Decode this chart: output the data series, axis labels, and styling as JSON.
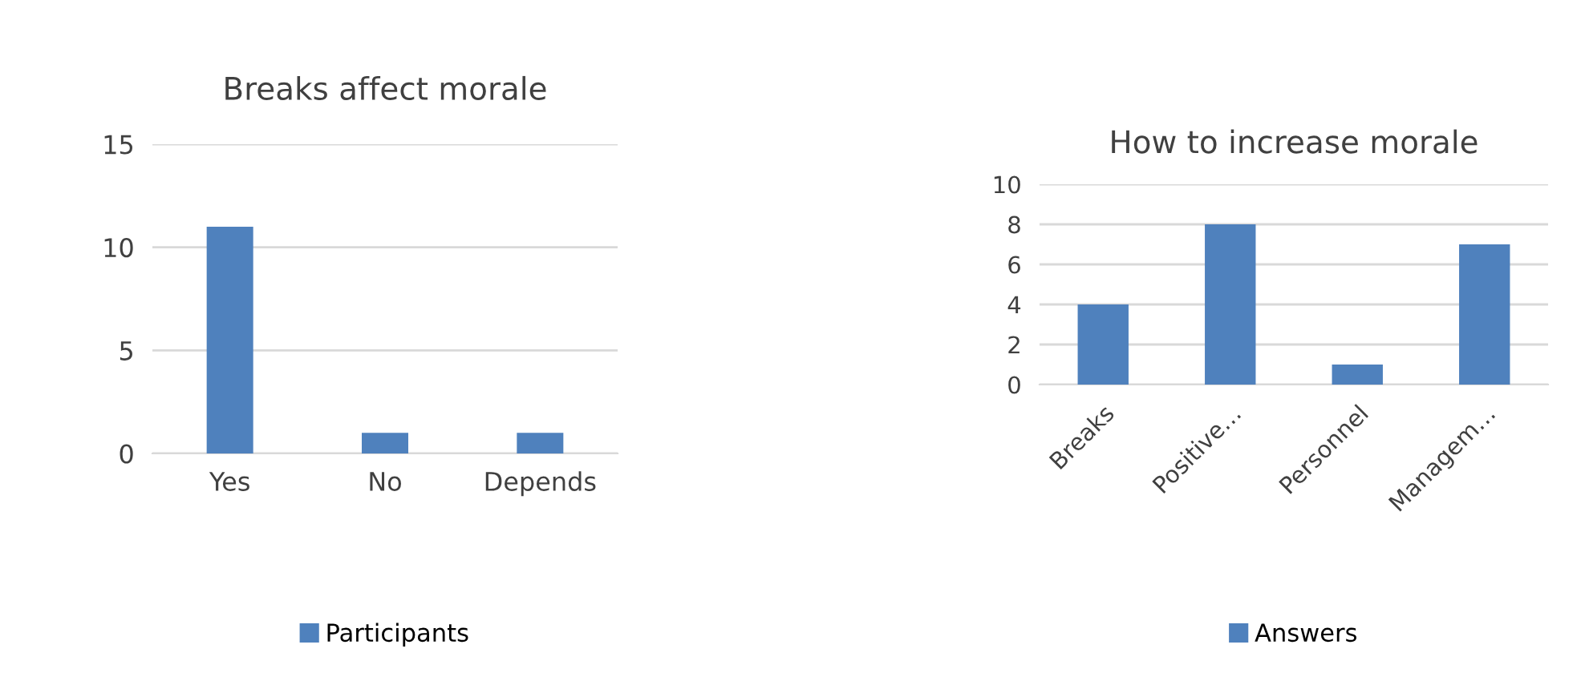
{
  "chart_data": [
    {
      "type": "bar",
      "title": "Breaks affect morale",
      "categories": [
        "Yes",
        "No",
        "Depends"
      ],
      "series": [
        {
          "name": "Participants",
          "color": "#4f81bd",
          "values": [
            11,
            1,
            1
          ]
        }
      ],
      "ylim": [
        0,
        15
      ],
      "yticks": [
        0,
        5,
        10,
        15
      ],
      "grid": "y",
      "legend": "bottom"
    },
    {
      "type": "bar",
      "title": "How to increase morale",
      "categories": [
        "Breaks",
        "Positive…",
        "Personnel",
        "Managem…"
      ],
      "series": [
        {
          "name": "Answers",
          "color": "#4f81bd",
          "values": [
            4,
            8,
            1,
            7
          ]
        }
      ],
      "ylim": [
        0,
        10
      ],
      "yticks": [
        0,
        2,
        4,
        6,
        8,
        10
      ],
      "grid": "y",
      "legend": "bottom"
    }
  ]
}
